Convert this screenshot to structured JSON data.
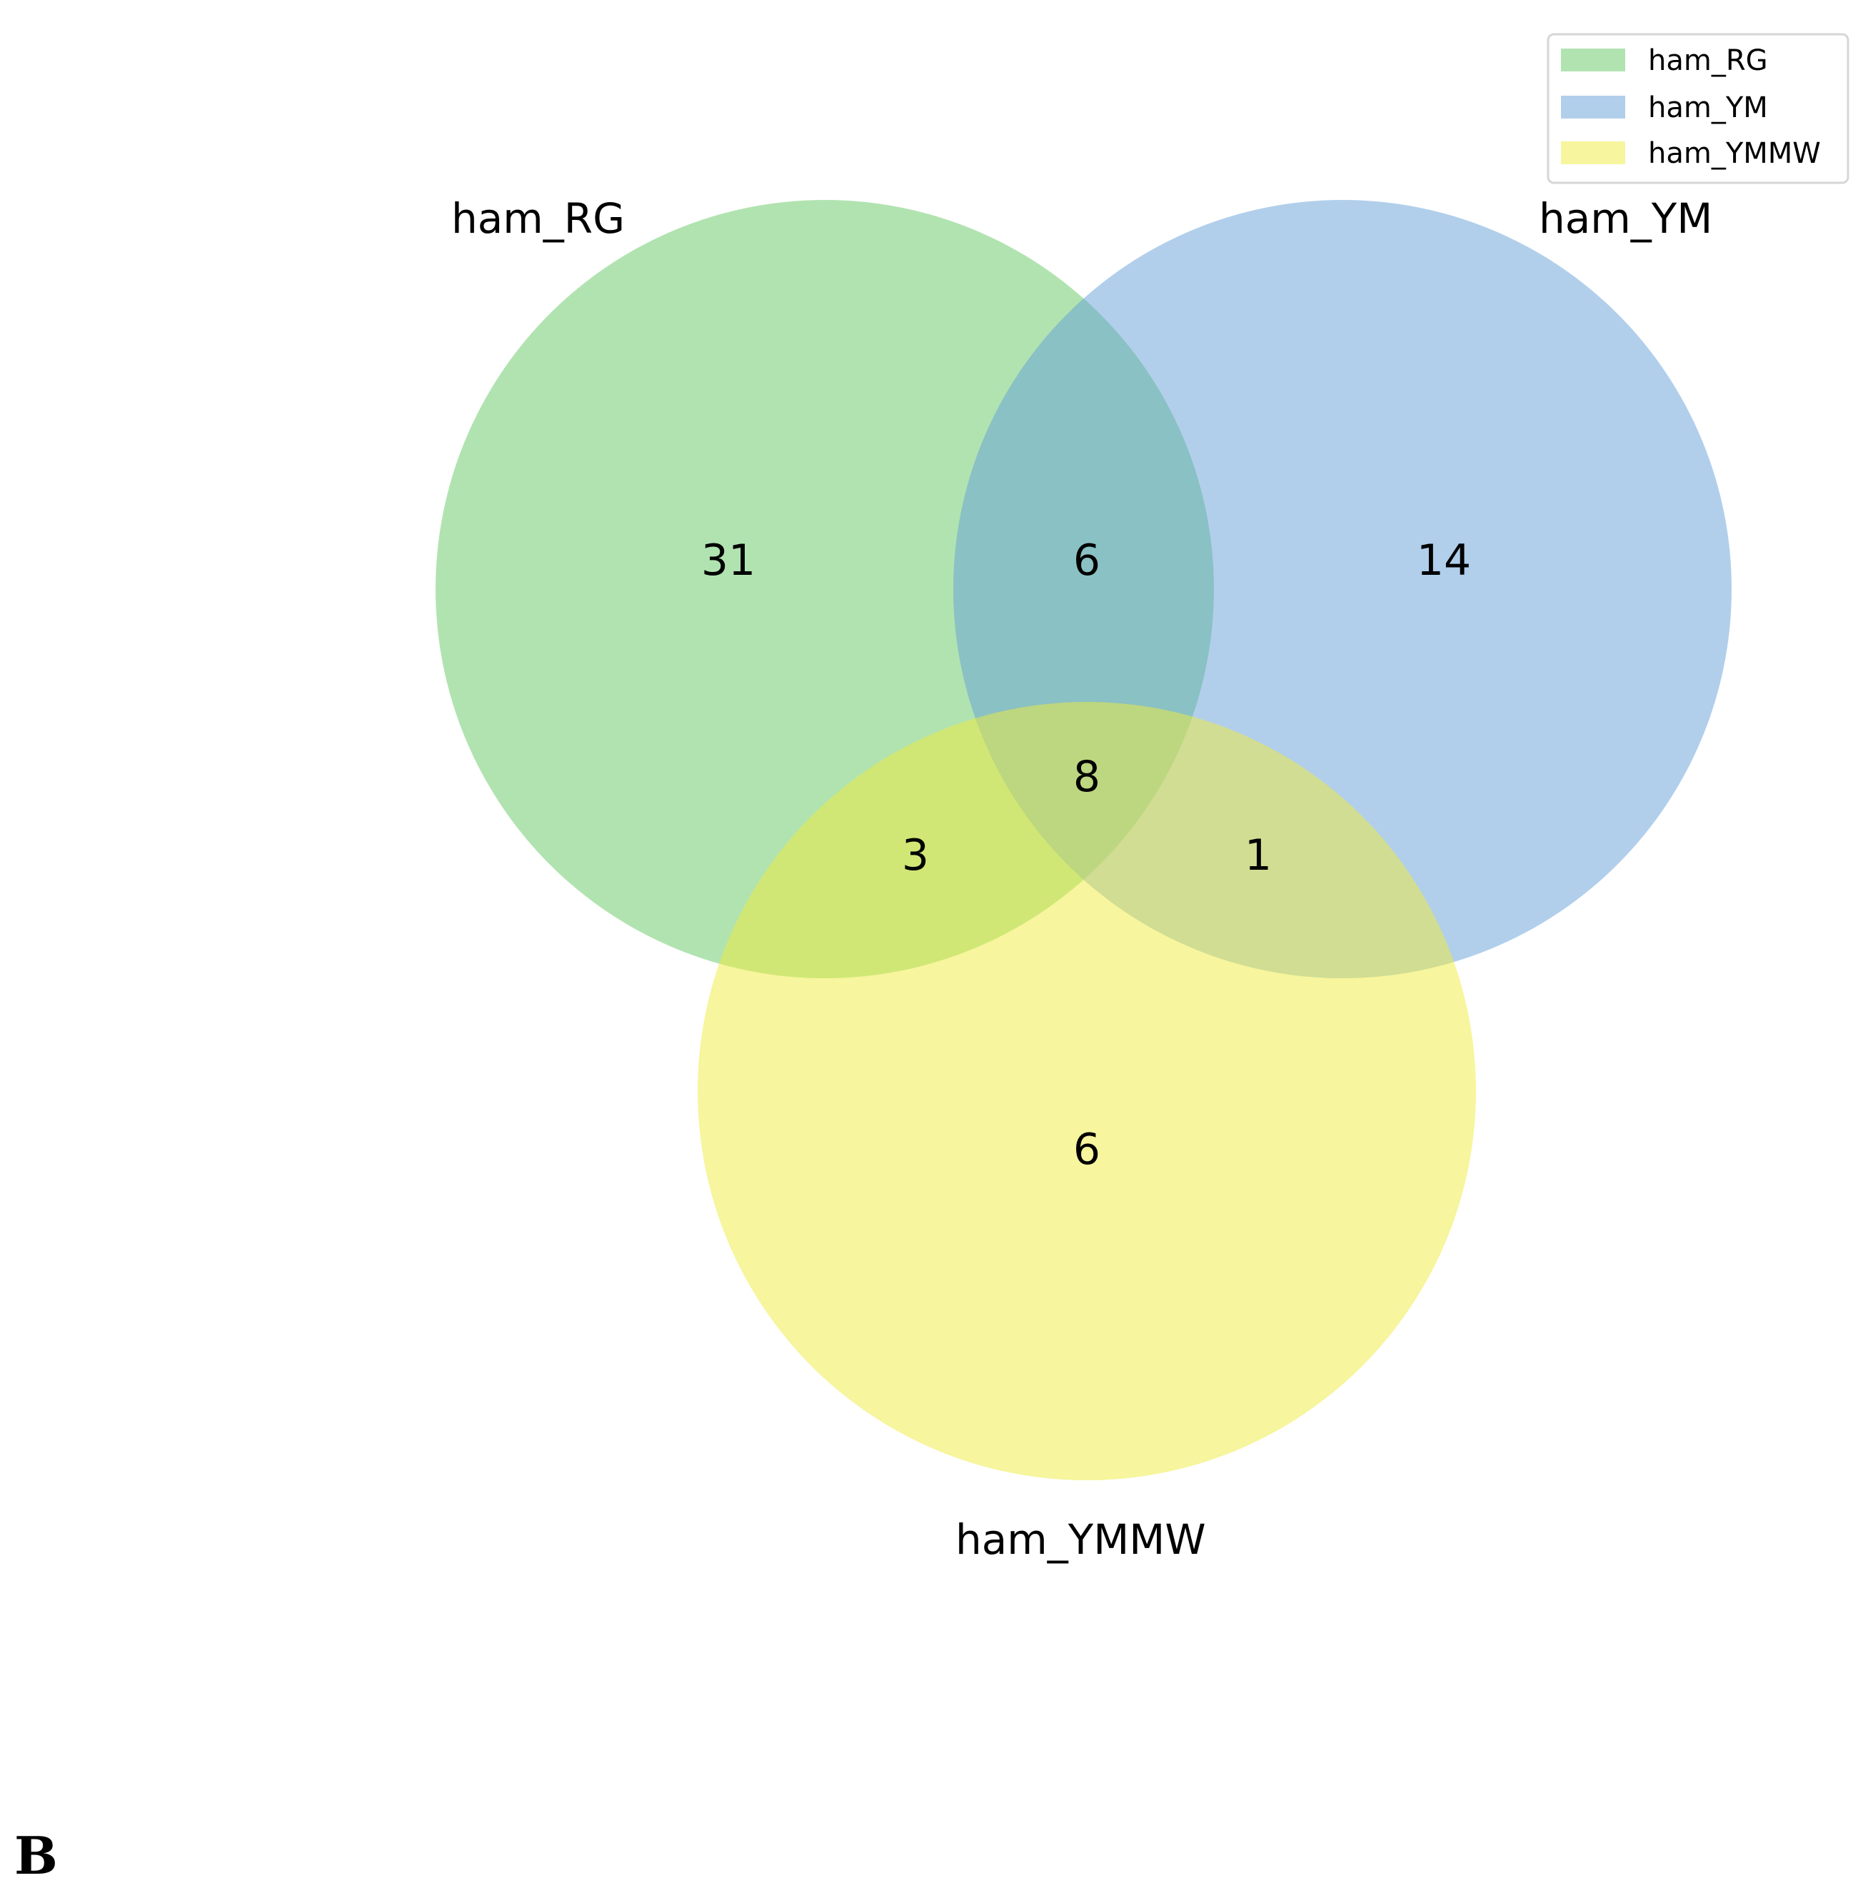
{
  "venn": {
    "sets": [
      {
        "name": "ham_RG",
        "color": "#64c864"
      },
      {
        "name": "ham_YM",
        "color": "#64a0d7"
      },
      {
        "name": "ham_YMMW",
        "color": "#f0eb3c"
      }
    ],
    "regions": {
      "rg_only": "31",
      "ym_only": "14",
      "ymmw_only": "6",
      "rg_ym": "6",
      "rg_ymmw": "3",
      "ym_ymmw": "1",
      "all_three": "8"
    },
    "legend": [
      "ham_RG",
      "ham_YM",
      "ham_YMMW"
    ]
  },
  "panel_letter": "B"
}
